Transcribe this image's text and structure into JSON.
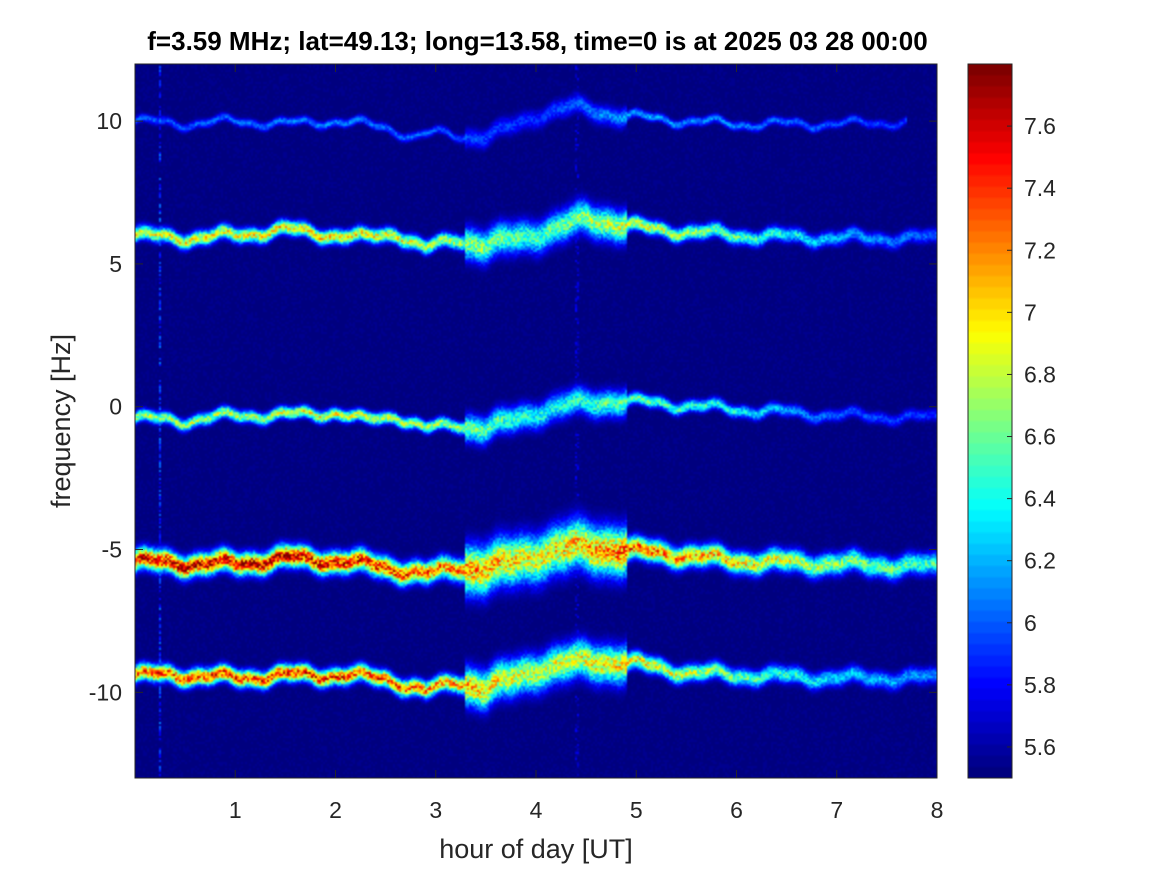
{
  "chart_data": {
    "type": "heatmap",
    "title": "f=3.59 MHz;  lat=49.13; long=13.58, time=0 is at 2025 03 28 00:00",
    "xlabel": "hour of day [UT]",
    "ylabel": "frequency [Hz]",
    "xlim": [
      0,
      8
    ],
    "ylim": [
      -13,
      12
    ],
    "x_ticks": [
      1,
      2,
      3,
      4,
      5,
      6,
      7,
      8
    ],
    "y_ticks": [
      -10,
      -5,
      0,
      5,
      10
    ],
    "colorbar": {
      "clim": [
        5.5,
        7.8
      ],
      "ticks": [
        5.6,
        5.8,
        6,
        6.2,
        6.4,
        6.6,
        6.8,
        7,
        7.2,
        7.4,
        7.6
      ],
      "tick_labels": [
        "5.6",
        "5.8",
        "6",
        "6.2",
        "6.4",
        "6.6",
        "6.8",
        "7",
        "7.2",
        "7.4",
        "7.6"
      ],
      "colormap": "jet"
    },
    "background_color": "#00008f",
    "series": [
      {
        "center": [
          [
            0,
            10.0
          ],
          [
            0.5,
            9.9
          ],
          [
            1,
            10.0
          ],
          [
            1.5,
            9.9
          ],
          [
            2,
            10.0
          ],
          [
            2.5,
            9.8
          ],
          [
            2.8,
            9.4
          ],
          [
            3,
            9.6
          ],
          [
            3.5,
            9.4
          ],
          [
            4,
            10.2
          ],
          [
            4.4,
            10.5
          ],
          [
            4.8,
            10.2
          ],
          [
            5.5,
            10.0
          ],
          [
            6,
            9.9
          ],
          [
            7,
            9.9
          ],
          [
            8,
            10.0
          ]
        ],
        "intensity": [
          [
            0,
            6.0
          ],
          [
            2,
            6.1
          ],
          [
            4,
            5.9
          ],
          [
            5,
            6.2
          ],
          [
            6,
            6.1
          ],
          [
            7.7,
            5.9
          ]
        ],
        "spread": 0.18,
        "x_end": 7.7
      },
      {
        "center": [
          [
            0,
            6.0
          ],
          [
            0.5,
            5.9
          ],
          [
            1,
            6.0
          ],
          [
            1.5,
            6.2
          ],
          [
            2,
            6.0
          ],
          [
            2.3,
            5.9
          ],
          [
            2.6,
            6.1
          ],
          [
            2.9,
            5.5
          ],
          [
            3.2,
            5.9
          ],
          [
            3.5,
            5.6
          ],
          [
            3.8,
            5.9
          ],
          [
            4.2,
            6.2
          ],
          [
            4.5,
            6.6
          ],
          [
            4.8,
            6.4
          ],
          [
            5.2,
            6.2
          ],
          [
            6,
            6.0
          ],
          [
            7,
            5.9
          ],
          [
            8,
            5.9
          ]
        ],
        "intensity": [
          [
            0,
            6.9
          ],
          [
            2,
            7.0
          ],
          [
            3,
            6.8
          ],
          [
            4,
            6.5
          ],
          [
            5,
            6.9
          ],
          [
            6,
            6.6
          ],
          [
            7,
            6.2
          ],
          [
            8,
            6.0
          ]
        ],
        "spread": 0.3,
        "x_end": 8
      },
      {
        "center": [
          [
            0,
            -0.4
          ],
          [
            0.5,
            -0.5
          ],
          [
            1,
            -0.3
          ],
          [
            1.5,
            -0.3
          ],
          [
            2,
            -0.2
          ],
          [
            2.3,
            -0.5
          ],
          [
            2.6,
            -0.3
          ],
          [
            2.9,
            -0.8
          ],
          [
            3.2,
            -0.6
          ],
          [
            3.5,
            -0.8
          ],
          [
            4,
            -0.2
          ],
          [
            4.4,
            0.1
          ],
          [
            4.8,
            0.2
          ],
          [
            5.3,
            0.1
          ],
          [
            6,
            -0.1
          ],
          [
            7,
            -0.3
          ],
          [
            8,
            -0.4
          ]
        ],
        "intensity": [
          [
            0,
            6.7
          ],
          [
            2,
            6.9
          ],
          [
            3,
            6.8
          ],
          [
            4,
            6.4
          ],
          [
            5,
            6.6
          ],
          [
            6,
            6.4
          ],
          [
            7,
            6.0
          ],
          [
            8,
            5.9
          ]
        ],
        "spread": 0.25,
        "x_end": 8
      },
      {
        "center": [
          [
            0,
            -5.4
          ],
          [
            0.5,
            -5.5
          ],
          [
            1,
            -5.5
          ],
          [
            1.5,
            -5.3
          ],
          [
            2,
            -5.4
          ],
          [
            2.5,
            -5.6
          ],
          [
            2.9,
            -5.9
          ],
          [
            3.2,
            -5.6
          ],
          [
            3.5,
            -5.7
          ],
          [
            4,
            -5.2
          ],
          [
            4.4,
            -4.9
          ],
          [
            4.8,
            -5.0
          ],
          [
            5.5,
            -5.2
          ],
          [
            6,
            -5.4
          ],
          [
            7,
            -5.5
          ],
          [
            8,
            -5.6
          ]
        ],
        "intensity": [
          [
            0,
            7.5
          ],
          [
            1,
            7.6
          ],
          [
            2,
            7.5
          ],
          [
            3,
            7.3
          ],
          [
            4,
            6.9
          ],
          [
            5,
            7.3
          ],
          [
            6,
            7.0
          ],
          [
            7,
            6.7
          ],
          [
            8,
            6.5
          ]
        ],
        "spread": 0.45,
        "x_end": 8
      },
      {
        "center": [
          [
            0,
            -9.4
          ],
          [
            0.5,
            -9.4
          ],
          [
            1,
            -9.5
          ],
          [
            1.5,
            -9.4
          ],
          [
            2,
            -9.4
          ],
          [
            2.5,
            -9.5
          ],
          [
            2.9,
            -10.0
          ],
          [
            3.2,
            -9.6
          ],
          [
            3.5,
            -9.9
          ],
          [
            4,
            -9.2
          ],
          [
            4.5,
            -8.9
          ],
          [
            5,
            -9.0
          ],
          [
            5.5,
            -9.3
          ],
          [
            6,
            -9.4
          ],
          [
            7,
            -9.5
          ],
          [
            8,
            -9.5
          ]
        ],
        "intensity": [
          [
            0,
            7.3
          ],
          [
            1,
            7.4
          ],
          [
            2,
            7.4
          ],
          [
            3,
            7.2
          ],
          [
            4,
            6.8
          ],
          [
            5,
            7.0
          ],
          [
            6,
            6.6
          ],
          [
            7,
            6.3
          ],
          [
            8,
            6.1
          ]
        ],
        "spread": 0.35,
        "x_end": 8
      }
    ],
    "scatter_region": {
      "x": [
        3.3,
        4.9
      ],
      "width_scale": 2.2
    },
    "vertical_lines": [
      {
        "x": 0.25,
        "intensity": 6.1
      },
      {
        "x": 4.41,
        "intensity": 5.8
      }
    ]
  }
}
